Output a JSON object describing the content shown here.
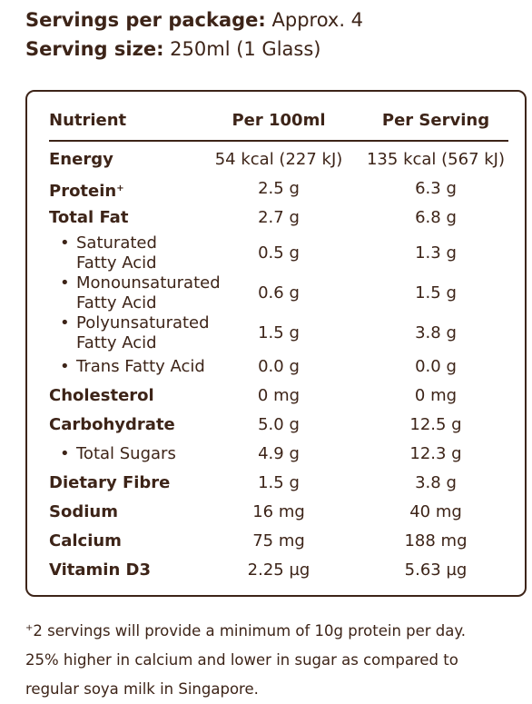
{
  "serving": {
    "per_package_label": "Servings per package:",
    "per_package_value": "Approx. 4",
    "size_label": "Serving size:",
    "size_value": "250ml (1 Glass)"
  },
  "table": {
    "headers": [
      "Nutrient",
      "Per 100ml",
      "Per Serving"
    ],
    "rows": [
      {
        "name": "Energy",
        "per100": "54 kcal (227 kJ)",
        "serving": "135 kcal (567 kJ)"
      },
      {
        "name": "Protein",
        "mark": "+",
        "per100": "2.5 g",
        "serving": "6.3 g"
      },
      {
        "name": "Total Fat",
        "per100": "2.7 g",
        "serving": "6.8 g"
      },
      {
        "name_lines": [
          "Saturated",
          "Fatty Acid"
        ],
        "bullet": "•",
        "per100": "0.5 g",
        "serving": "1.3 g"
      },
      {
        "name_lines": [
          "Monounsaturated",
          "Fatty Acid"
        ],
        "bullet": "•",
        "per100": "0.6 g",
        "serving": "1.5 g"
      },
      {
        "name_lines": [
          "Polyunsaturated",
          "Fatty Acid"
        ],
        "bullet": "•",
        "per100": "1.5 g",
        "serving": "3.8 g"
      },
      {
        "name": "Trans Fatty Acid",
        "bullet": "•",
        "per100": "0.0 g",
        "serving": "0.0 g"
      },
      {
        "name": "Cholesterol",
        "per100": "0 mg",
        "serving": "0 mg"
      },
      {
        "name": "Carbohydrate",
        "per100": "5.0 g",
        "serving": "12.5 g"
      },
      {
        "name": "Total Sugars",
        "bullet": "•",
        "per100": "4.9 g",
        "serving": "12.3 g"
      },
      {
        "name": "Dietary Fibre",
        "per100": "1.5 g",
        "serving": "3.8 g"
      },
      {
        "name": "Sodium",
        "per100": "16 mg",
        "serving": "40 mg"
      },
      {
        "name": "Calcium",
        "per100": "75 mg",
        "serving": "188 mg"
      },
      {
        "name": "Vitamin D3",
        "per100": "2.25 µg",
        "serving": "5.63 µg"
      }
    ]
  },
  "footnote": {
    "mark": "+",
    "line1": "2 servings will provide a minimum of 10g protein per day.",
    "line2": "25% higher in calcium and lower in sugar as compared to",
    "line3": "regular soya milk in Singapore."
  },
  "colors": {
    "text": "#3d2418",
    "border": "#3d2418"
  }
}
